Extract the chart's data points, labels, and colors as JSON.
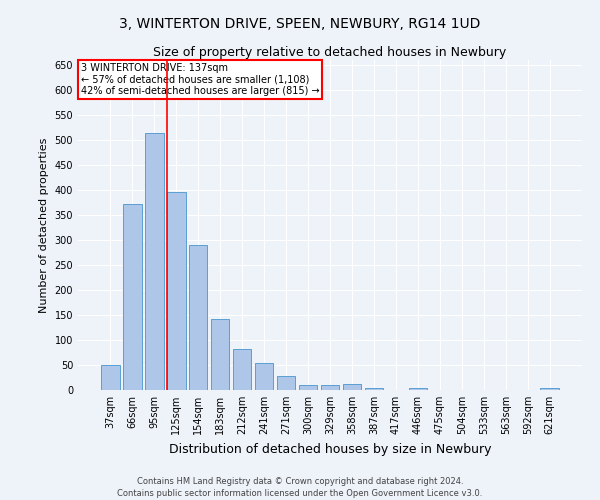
{
  "title": "3, WINTERTON DRIVE, SPEEN, NEWBURY, RG14 1UD",
  "subtitle": "Size of property relative to detached houses in Newbury",
  "xlabel": "Distribution of detached houses by size in Newbury",
  "ylabel": "Number of detached properties",
  "categories": [
    "37sqm",
    "66sqm",
    "95sqm",
    "125sqm",
    "154sqm",
    "183sqm",
    "212sqm",
    "241sqm",
    "271sqm",
    "300sqm",
    "329sqm",
    "358sqm",
    "387sqm",
    "417sqm",
    "446sqm",
    "475sqm",
    "504sqm",
    "533sqm",
    "563sqm",
    "592sqm",
    "621sqm"
  ],
  "values": [
    50,
    372,
    514,
    397,
    290,
    142,
    82,
    55,
    28,
    10,
    10,
    12,
    4,
    1,
    5,
    1,
    1,
    1,
    1,
    1,
    5
  ],
  "bar_color": "#aec6e8",
  "bar_edge_color": "#5a9fd4",
  "vline_color": "red",
  "vline_x_index": 3,
  "annotation_title": "3 WINTERTON DRIVE: 137sqm",
  "annotation_line1": "← 57% of detached houses are smaller (1,108)",
  "annotation_line2": "42% of semi-detached houses are larger (815) →",
  "annotation_box_color": "white",
  "annotation_box_edge_color": "red",
  "ylim": [
    0,
    660
  ],
  "yticks": [
    0,
    50,
    100,
    150,
    200,
    250,
    300,
    350,
    400,
    450,
    500,
    550,
    600,
    650
  ],
  "footer1": "Contains HM Land Registry data © Crown copyright and database right 2024.",
  "footer2": "Contains public sector information licensed under the Open Government Licence v3.0.",
  "background_color": "#eef2f9",
  "title_fontsize": 10,
  "subtitle_fontsize": 9,
  "ylabel_fontsize": 8,
  "xlabel_fontsize": 9,
  "tick_fontsize": 7,
  "annotation_fontsize": 7,
  "footer_fontsize": 6
}
